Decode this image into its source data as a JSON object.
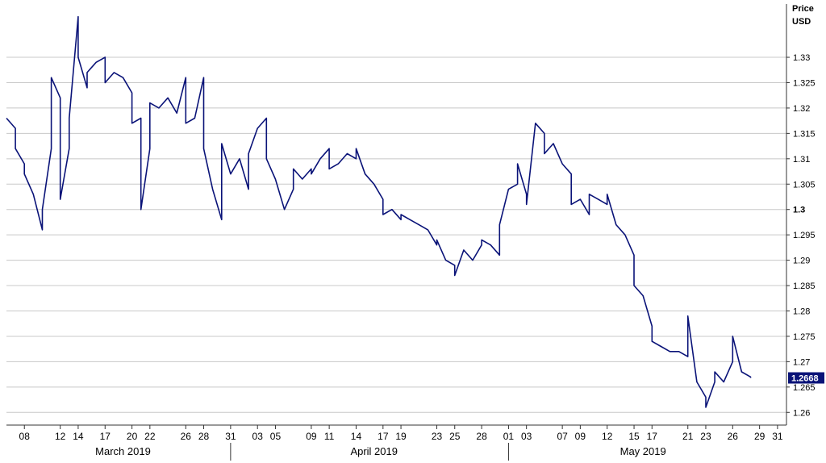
{
  "chart_data": {
    "type": "line",
    "unit_label_line1": "Price",
    "unit_label_line2": "USD",
    "ylim": [
      1.2575,
      1.3405
    ],
    "y_ticks": [
      {
        "value": 1.26,
        "label": "1.26",
        "bold": false
      },
      {
        "value": 1.265,
        "label": "1.265",
        "bold": false
      },
      {
        "value": 1.27,
        "label": "1.27",
        "bold": false
      },
      {
        "value": 1.275,
        "label": "1.275",
        "bold": false
      },
      {
        "value": 1.28,
        "label": "1.28",
        "bold": false
      },
      {
        "value": 1.285,
        "label": "1.285",
        "bold": false
      },
      {
        "value": 1.29,
        "label": "1.29",
        "bold": false
      },
      {
        "value": 1.295,
        "label": "1.295",
        "bold": false
      },
      {
        "value": 1.3,
        "label": "1.3",
        "bold": true
      },
      {
        "value": 1.305,
        "label": "1.305",
        "bold": false
      },
      {
        "value": 1.31,
        "label": "1.31",
        "bold": false
      },
      {
        "value": 1.315,
        "label": "1.315",
        "bold": false
      },
      {
        "value": 1.32,
        "label": "1.32",
        "bold": false
      },
      {
        "value": 1.325,
        "label": "1.325",
        "bold": false
      },
      {
        "value": 1.33,
        "label": "1.33",
        "bold": false
      }
    ],
    "x_range": [
      "2019-03-06",
      "2019-06-01"
    ],
    "x_ticks": [
      {
        "date": "2019-03-08",
        "label": "08"
      },
      {
        "date": "2019-03-12",
        "label": "12"
      },
      {
        "date": "2019-03-14",
        "label": "14"
      },
      {
        "date": "2019-03-17",
        "label": "17"
      },
      {
        "date": "2019-03-20",
        "label": "20"
      },
      {
        "date": "2019-03-22",
        "label": "22"
      },
      {
        "date": "2019-03-26",
        "label": "26"
      },
      {
        "date": "2019-03-28",
        "label": "28"
      },
      {
        "date": "2019-03-31",
        "label": "31"
      },
      {
        "date": "2019-04-03",
        "label": "03"
      },
      {
        "date": "2019-04-05",
        "label": "05"
      },
      {
        "date": "2019-04-09",
        "label": "09"
      },
      {
        "date": "2019-04-11",
        "label": "11"
      },
      {
        "date": "2019-04-14",
        "label": "14"
      },
      {
        "date": "2019-04-17",
        "label": "17"
      },
      {
        "date": "2019-04-19",
        "label": "19"
      },
      {
        "date": "2019-04-23",
        "label": "23"
      },
      {
        "date": "2019-04-25",
        "label": "25"
      },
      {
        "date": "2019-04-28",
        "label": "28"
      },
      {
        "date": "2019-05-01",
        "label": "01"
      },
      {
        "date": "2019-05-03",
        "label": "03"
      },
      {
        "date": "2019-05-07",
        "label": "07"
      },
      {
        "date": "2019-05-09",
        "label": "09"
      },
      {
        "date": "2019-05-12",
        "label": "12"
      },
      {
        "date": "2019-05-15",
        "label": "15"
      },
      {
        "date": "2019-05-17",
        "label": "17"
      },
      {
        "date": "2019-05-21",
        "label": "21"
      },
      {
        "date": "2019-05-23",
        "label": "23"
      },
      {
        "date": "2019-05-26",
        "label": "26"
      },
      {
        "date": "2019-05-29",
        "label": "29"
      },
      {
        "date": "2019-05-31",
        "label": "31"
      }
    ],
    "months": [
      {
        "label": "March 2019",
        "center": "2019-03-19"
      },
      {
        "label": "April 2019",
        "center": "2019-04-16"
      },
      {
        "label": "May 2019",
        "center": "2019-05-16"
      }
    ],
    "month_separators": [
      "2019-03-31",
      "2019-05-01"
    ],
    "grid": true,
    "last_value_label": "1.2668",
    "last_value": 1.2668,
    "series": [
      {
        "color": "#0a1378",
        "x": [
          "2019-03-06",
          "2019-03-07",
          "2019-03-07",
          "2019-03-08",
          "2019-03-08",
          "2019-03-09",
          "2019-03-10",
          "2019-03-10",
          "2019-03-11",
          "2019-03-11",
          "2019-03-12",
          "2019-03-12",
          "2019-03-13",
          "2019-03-13",
          "2019-03-14",
          "2019-03-14",
          "2019-03-15",
          "2019-03-15",
          "2019-03-16",
          "2019-03-17",
          "2019-03-17",
          "2019-03-18",
          "2019-03-19",
          "2019-03-20",
          "2019-03-20",
          "2019-03-21",
          "2019-03-21",
          "2019-03-22",
          "2019-03-22",
          "2019-03-23",
          "2019-03-24",
          "2019-03-25",
          "2019-03-26",
          "2019-03-26",
          "2019-03-27",
          "2019-03-28",
          "2019-03-28",
          "2019-03-29",
          "2019-03-30",
          "2019-03-30",
          "2019-03-31",
          "2019-04-01",
          "2019-04-02",
          "2019-04-02",
          "2019-04-03",
          "2019-04-04",
          "2019-04-04",
          "2019-04-05",
          "2019-04-06",
          "2019-04-07",
          "2019-04-07",
          "2019-04-08",
          "2019-04-09",
          "2019-04-09",
          "2019-04-10",
          "2019-04-11",
          "2019-04-11",
          "2019-04-12",
          "2019-04-13",
          "2019-04-14",
          "2019-04-14",
          "2019-04-15",
          "2019-04-16",
          "2019-04-17",
          "2019-04-17",
          "2019-04-18",
          "2019-04-19",
          "2019-04-19",
          "2019-04-20",
          "2019-04-21",
          "2019-04-22",
          "2019-04-23",
          "2019-04-23",
          "2019-04-24",
          "2019-04-25",
          "2019-04-25",
          "2019-04-26",
          "2019-04-27",
          "2019-04-28",
          "2019-04-28",
          "2019-04-29",
          "2019-04-30",
          "2019-04-30",
          "2019-05-01",
          "2019-05-02",
          "2019-05-02",
          "2019-05-03",
          "2019-05-03",
          "2019-05-04",
          "2019-05-05",
          "2019-05-05",
          "2019-05-06",
          "2019-05-07",
          "2019-05-08",
          "2019-05-08",
          "2019-05-09",
          "2019-05-10",
          "2019-05-10",
          "2019-05-11",
          "2019-05-12",
          "2019-05-12",
          "2019-05-13",
          "2019-05-14",
          "2019-05-15",
          "2019-05-15",
          "2019-05-16",
          "2019-05-17",
          "2019-05-17",
          "2019-05-18",
          "2019-05-19",
          "2019-05-20",
          "2019-05-21",
          "2019-05-21",
          "2019-05-22",
          "2019-05-23",
          "2019-05-23",
          "2019-05-24",
          "2019-05-24",
          "2019-05-25",
          "2019-05-26",
          "2019-05-26",
          "2019-05-27",
          "2019-05-28",
          "2019-05-28"
        ],
        "y": [
          1.318,
          1.316,
          1.312,
          1.309,
          1.307,
          1.303,
          1.296,
          1.3,
          1.312,
          1.326,
          1.322,
          1.302,
          1.312,
          1.318,
          1.338,
          1.33,
          1.324,
          1.327,
          1.329,
          1.33,
          1.325,
          1.327,
          1.326,
          1.323,
          1.317,
          1.318,
          1.3,
          1.312,
          1.321,
          1.32,
          1.322,
          1.319,
          1.326,
          1.317,
          1.318,
          1.326,
          1.312,
          1.304,
          1.298,
          1.313,
          1.307,
          1.31,
          1.304,
          1.311,
          1.316,
          1.318,
          1.31,
          1.306,
          1.3,
          1.304,
          1.308,
          1.306,
          1.308,
          1.307,
          1.31,
          1.312,
          1.308,
          1.309,
          1.311,
          1.31,
          1.312,
          1.307,
          1.305,
          1.302,
          1.299,
          1.3,
          1.298,
          1.299,
          1.298,
          1.297,
          1.296,
          1.293,
          1.294,
          1.29,
          1.289,
          1.287,
          1.292,
          1.29,
          1.293,
          1.294,
          1.293,
          1.291,
          1.297,
          1.304,
          1.305,
          1.309,
          1.303,
          1.301,
          1.317,
          1.315,
          1.311,
          1.313,
          1.309,
          1.307,
          1.301,
          1.302,
          1.299,
          1.303,
          1.302,
          1.301,
          1.303,
          1.297,
          1.295,
          1.291,
          1.285,
          1.283,
          1.277,
          1.274,
          1.273,
          1.272,
          1.272,
          1.271,
          1.279,
          1.266,
          1.263,
          1.261,
          1.266,
          1.268,
          1.266,
          1.27,
          1.275,
          1.268,
          1.267,
          1.2668
        ]
      }
    ]
  }
}
